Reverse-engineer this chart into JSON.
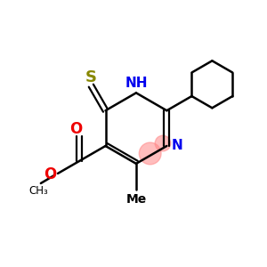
{
  "background_color": "#ffffff",
  "bond_color": "#000000",
  "N_color": "#0000ee",
  "O_color": "#ee0000",
  "S_color": "#888800",
  "highlight_color": "#ff8888",
  "highlight_alpha": 0.55,
  "figsize": [
    3.0,
    3.0
  ],
  "dpi": 100,
  "xlim": [
    0,
    10
  ],
  "ylim": [
    0,
    10
  ]
}
